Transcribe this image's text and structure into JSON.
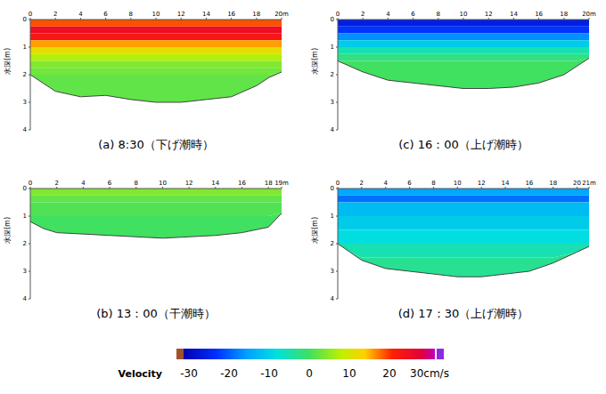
{
  "chart_data": [
    {
      "type": "heatmap",
      "title": "(a) 8:30（下げ潮時）",
      "y_label": "水深(m)",
      "xlim": [
        0,
        20
      ],
      "xticks": [
        0,
        2,
        4,
        6,
        8,
        10,
        12,
        14,
        16,
        18,
        {
          "value": 20,
          "label": "20m"
        }
      ],
      "ylim": [
        0,
        4
      ],
      "yticks": [
        0,
        1,
        2,
        3,
        4
      ],
      "bed": {
        "x": [
          0,
          1,
          2,
          4,
          6,
          8,
          10,
          12,
          14,
          16,
          18,
          19,
          20
        ],
        "depth": [
          2.0,
          2.3,
          2.6,
          2.8,
          2.75,
          2.9,
          3.0,
          3.0,
          2.9,
          2.8,
          2.4,
          2.1,
          1.9
        ]
      },
      "cells": {
        "depth_edges": [
          0,
          0.25,
          0.5,
          0.75,
          1,
          1.25,
          1.5,
          1.75,
          2,
          4
        ],
        "velocity": [
          18,
          24,
          22,
          15,
          11,
          7,
          4,
          3,
          2
        ]
      }
    },
    {
      "type": "heatmap",
      "title": "(b) 13：00（干潮時）",
      "y_label": "水深(m)",
      "xlim": [
        0,
        19
      ],
      "xticks": [
        0,
        2,
        4,
        6,
        8,
        10,
        12,
        14,
        16,
        18,
        {
          "value": 19,
          "label": "19m"
        }
      ],
      "ylim": [
        0,
        4
      ],
      "yticks": [
        0,
        1,
        2,
        3,
        4
      ],
      "bed": {
        "x": [
          0,
          1,
          2,
          4,
          6,
          8,
          10,
          12,
          14,
          16,
          18,
          19
        ],
        "depth": [
          1.2,
          1.45,
          1.6,
          1.65,
          1.7,
          1.75,
          1.8,
          1.75,
          1.7,
          1.6,
          1.4,
          0.9
        ]
      },
      "cells": {
        "depth_edges": [
          0,
          0.25,
          0.5,
          1,
          4
        ],
        "velocity": [
          4,
          2,
          1,
          0
        ]
      }
    },
    {
      "type": "heatmap",
      "title": "(c) 16：00（上げ潮時）",
      "y_label": "水深(m)",
      "xlim": [
        0,
        20
      ],
      "xticks": [
        0,
        2,
        4,
        6,
        8,
        10,
        12,
        14,
        16,
        18,
        {
          "value": 20,
          "label": "20m"
        }
      ],
      "ylim": [
        0,
        4
      ],
      "yticks": [
        0,
        1,
        2,
        3,
        4
      ],
      "bed": {
        "x": [
          0,
          1,
          2,
          4,
          6,
          8,
          10,
          12,
          14,
          16,
          18,
          19,
          20
        ],
        "depth": [
          1.5,
          1.7,
          1.9,
          2.2,
          2.3,
          2.4,
          2.5,
          2.5,
          2.45,
          2.3,
          2.0,
          1.7,
          1.4
        ]
      },
      "cells": {
        "depth_edges": [
          0,
          0.25,
          0.5,
          0.75,
          1,
          1.25,
          1.5,
          4
        ],
        "velocity": [
          -25,
          -22,
          -16,
          -10,
          -5,
          -2,
          0
        ]
      }
    },
    {
      "type": "heatmap",
      "title": "(d) 17：30（上げ潮時）",
      "y_label": "水深(m)",
      "xlim": [
        0,
        21
      ],
      "xticks": [
        0,
        2,
        4,
        6,
        8,
        10,
        12,
        14,
        16,
        18,
        20,
        {
          "value": 21,
          "label": "21m"
        }
      ],
      "ylim": [
        0,
        4
      ],
      "yticks": [
        0,
        1,
        2,
        3,
        4
      ],
      "bed": {
        "x": [
          0,
          1,
          2,
          4,
          6,
          8,
          10,
          12,
          14,
          16,
          18,
          20,
          21
        ],
        "depth": [
          2.0,
          2.3,
          2.6,
          2.9,
          3.0,
          3.1,
          3.2,
          3.2,
          3.1,
          3.0,
          2.7,
          2.3,
          2.1
        ]
      },
      "cells": {
        "depth_edges": [
          0,
          0.25,
          0.5,
          1,
          1.5,
          2,
          2.5,
          4
        ],
        "velocity": [
          -14,
          -18,
          -12,
          -10,
          -8,
          -5,
          -3
        ]
      }
    }
  ],
  "colorbar": {
    "label": "Velocity",
    "range": [
      -30,
      30
    ],
    "ticks": [
      -30,
      -20,
      -10,
      0,
      10,
      20,
      {
        "value": 30,
        "label": "30cm/s"
      }
    ]
  }
}
